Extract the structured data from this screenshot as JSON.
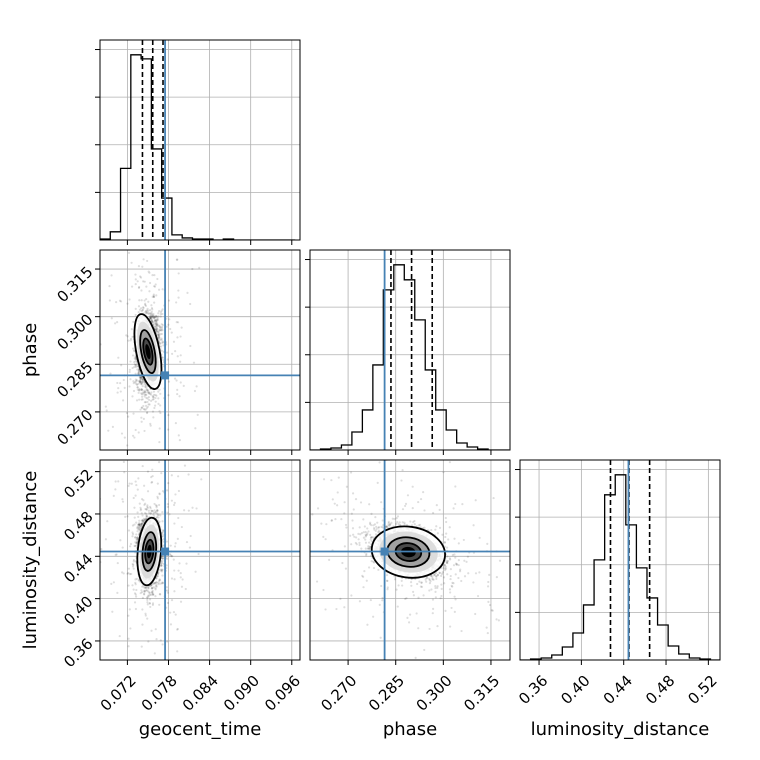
{
  "chart_data": {
    "type": "corner",
    "parameters": [
      "geocent_time",
      "phase",
      "luminosity_distance"
    ],
    "truths": {
      "geocent_time": 0.0775,
      "phase": 0.2815,
      "luminosity_distance": 0.4445
    },
    "truth_color": "#4682b4",
    "grid": true,
    "geocent_time": {
      "xlabel": "geocent_time",
      "xticks": [
        "0.072",
        "0.078",
        "0.084",
        "0.090",
        "0.096"
      ],
      "xtick_values": [
        0.072,
        0.078,
        0.084,
        0.09,
        0.096
      ],
      "xlim": [
        0.068,
        0.0972
      ],
      "quantiles": [
        0.0742,
        0.0757,
        0.0772
      ],
      "hist_edges": [
        0.068,
        0.0695,
        0.071,
        0.0725,
        0.074,
        0.0755,
        0.077,
        0.0785,
        0.08,
        0.0815,
        0.083,
        0.0845,
        0.086,
        0.0875,
        0.089,
        0.0905,
        0.092,
        0.0935,
        0.095,
        0.0965
      ],
      "hist_counts": [
        1,
        8,
        70,
        181,
        177,
        89,
        41,
        5,
        2,
        1,
        1,
        0,
        1,
        0,
        0,
        0,
        0,
        0,
        0
      ]
    },
    "phase": {
      "xlabel": "phase",
      "ylabel": "phase",
      "xticks": [
        "0.270",
        "0.285",
        "0.300",
        "0.315"
      ],
      "xtick_values": [
        0.27,
        0.285,
        0.3,
        0.315
      ],
      "xlim": [
        0.258,
        0.321
      ],
      "quantiles": [
        0.2835,
        0.29,
        0.2965
      ],
      "hist_edges": [
        0.258,
        0.2613,
        0.2646,
        0.2679,
        0.2712,
        0.2745,
        0.2778,
        0.2811,
        0.2844,
        0.2877,
        0.291,
        0.2943,
        0.2976,
        0.3009,
        0.3042,
        0.3075,
        0.3108,
        0.3141,
        0.3174,
        0.3207
      ],
      "hist_counts": [
        0,
        1,
        2,
        5,
        18,
        40,
        85,
        160,
        185,
        170,
        130,
        80,
        40,
        20,
        7,
        3,
        1,
        0,
        0
      ]
    },
    "luminosity_distance": {
      "xlabel": "luminosity_distance",
      "ylabel": "luminosity_distance",
      "xticks": [
        "0.36",
        "0.40",
        "0.44",
        "0.48",
        "0.52"
      ],
      "xtick_values": [
        0.36,
        0.4,
        0.44,
        0.48,
        0.52
      ],
      "xlim": [
        0.342,
        0.531
      ],
      "quantiles": [
        0.4275,
        0.445,
        0.4645
      ],
      "hist_edges": [
        0.342,
        0.352,
        0.362,
        0.372,
        0.382,
        0.392,
        0.402,
        0.412,
        0.422,
        0.432,
        0.442,
        0.452,
        0.462,
        0.472,
        0.482,
        0.492,
        0.502,
        0.512,
        0.522,
        0.532
      ],
      "hist_counts": [
        0,
        1,
        2,
        5,
        13,
        27,
        55,
        100,
        165,
        185,
        135,
        92,
        62,
        35,
        14,
        6,
        2,
        1,
        0
      ]
    },
    "pairs": [
      {
        "x": "geocent_time",
        "y": "phase",
        "peak": [
          0.075,
          0.289
        ],
        "sigma_x": 0.00085,
        "sigma_y": 0.006,
        "corr": 0.1,
        "cloud_scale": 2.2
      },
      {
        "x": "geocent_time",
        "y": "luminosity_distance",
        "peak": [
          0.0752,
          0.4445
        ],
        "sigma_x": 0.00085,
        "sigma_y": 0.016,
        "corr": -0.05,
        "cloud_scale": 2.2
      },
      {
        "x": "phase",
        "y": "luminosity_distance",
        "peak": [
          0.289,
          0.444
        ],
        "sigma_x": 0.0058,
        "sigma_y": 0.012,
        "corr": -0.35,
        "cloud_scale": 2.2
      }
    ]
  }
}
